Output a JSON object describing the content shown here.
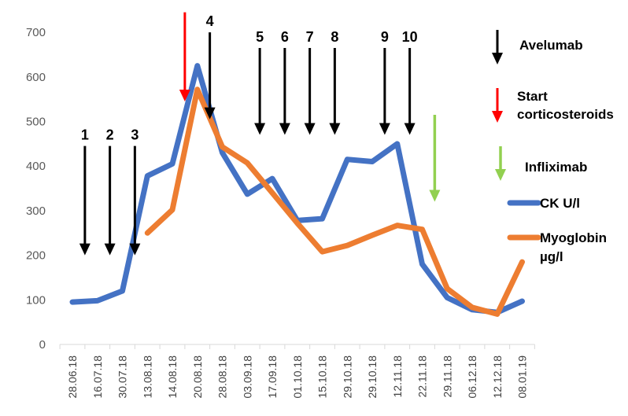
{
  "chart_data": {
    "type": "line",
    "title": "",
    "xlabel": "",
    "ylabel": "",
    "ylim": [
      0,
      700
    ],
    "yticks": [
      0,
      100,
      200,
      300,
      400,
      500,
      600,
      700
    ],
    "grid": false,
    "categories": [
      "28.06.18",
      "16.07.18",
      "30.07.18",
      "13.08.18",
      "14.08.18",
      "20.08.18",
      "28.08.18",
      "03.09.18",
      "17.09.18",
      "01.10.18",
      "15.10.18",
      "29.10.18",
      "29.10.18",
      "12.11.18",
      "22.11.18",
      "29.11.18",
      "06.12.18",
      "12.12.18",
      "08.01.19"
    ],
    "series": [
      {
        "name": "CK U/l",
        "color": "#4472C4",
        "values": [
          95,
          98,
          120,
          378,
          405,
          625,
          430,
          337,
          372,
          278,
          282,
          415,
          410,
          450,
          180,
          105,
          78,
          72,
          97
        ]
      },
      {
        "name": "Myoglobin µg/l",
        "color": "#ED7D31",
        "values": [
          null,
          null,
          null,
          250,
          302,
          572,
          443,
          407,
          340,
          272,
          208,
          222,
          245,
          267,
          258,
          125,
          83,
          68,
          185
        ]
      }
    ],
    "legend_position": "right",
    "annotations": [
      {
        "label": "1",
        "color": "#000000",
        "at": "16.07.18",
        "from": 445,
        "to": 200
      },
      {
        "label": "2",
        "color": "#000000",
        "at": "30.07.18",
        "from": 445,
        "to": 200
      },
      {
        "label": "3",
        "color": "#000000",
        "at": "13.08.18",
        "from": 445,
        "to": 200
      },
      {
        "label": "4",
        "color": "#000000",
        "at": "28.08.18",
        "from": 700,
        "to": 505
      },
      {
        "label": "5",
        "color": "#000000",
        "at": "17.09.18",
        "from": 665,
        "to": 470
      },
      {
        "label": "6",
        "color": "#000000",
        "at": "01.10.18",
        "from": 665,
        "to": 470
      },
      {
        "label": "7",
        "color": "#000000",
        "at": "15.10.18",
        "from": 665,
        "to": 470
      },
      {
        "label": "8",
        "color": "#000000",
        "at": "29.10.18",
        "from": 665,
        "to": 470
      },
      {
        "label": "9",
        "color": "#000000",
        "at": "12.11.18",
        "from": 665,
        "to": 470
      },
      {
        "label": "10",
        "color": "#000000",
        "at": "22.11.18",
        "from": 665,
        "to": 470
      },
      {
        "label": "",
        "color": "#FF0000",
        "at": "20.08.18",
        "from": 745,
        "to": 545
      },
      {
        "label": "",
        "color": "#92D050",
        "at": "29.11.18",
        "from": 515,
        "to": 320
      }
    ],
    "key": [
      {
        "label": "Avelumab",
        "color": "#000000"
      },
      {
        "label": "Start corticosteroids",
        "lines": [
          "Start",
          "corticosteroids"
        ],
        "color": "#FF0000"
      },
      {
        "label": "Infliximab",
        "color": "#92D050"
      }
    ]
  }
}
